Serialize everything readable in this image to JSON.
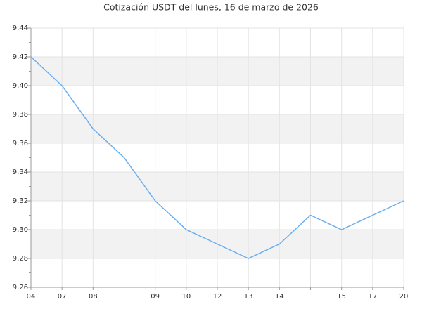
{
  "chart_data": {
    "type": "line",
    "title": "Cotización USDT del lunes, 16 de marzo de 2026",
    "categories": [
      "04",
      "07",
      "08",
      null,
      "09",
      "10",
      "12",
      "13",
      "14",
      null,
      "15",
      "17",
      "20"
    ],
    "series": [
      {
        "name": "USDT",
        "color": "#6aaef0",
        "values": [
          9.42,
          9.4,
          9.37,
          9.35,
          9.32,
          9.3,
          9.29,
          9.28,
          9.29,
          9.31,
          9.3,
          9.31,
          9.32
        ]
      }
    ],
    "ylim": [
      9.26,
      9.44
    ],
    "yticks": [
      {
        "value": 9.26,
        "label": "9,26"
      },
      {
        "value": 9.28,
        "label": "9,28"
      },
      {
        "value": 9.3,
        "label": "9,30"
      },
      {
        "value": 9.32,
        "label": "9,32"
      },
      {
        "value": 9.34,
        "label": "9,34"
      },
      {
        "value": 9.36,
        "label": "9,36"
      },
      {
        "value": 9.38,
        "label": "9,38"
      },
      {
        "value": 9.4,
        "label": "9,40"
      },
      {
        "value": 9.42,
        "label": "9,42"
      },
      {
        "value": 9.44,
        "label": "9,44"
      }
    ],
    "grid": true
  }
}
